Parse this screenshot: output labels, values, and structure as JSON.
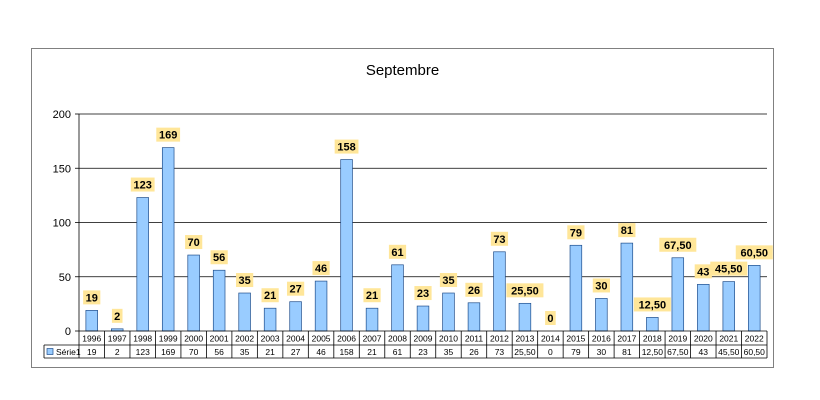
{
  "chart_data": {
    "type": "bar",
    "title": "Septembre",
    "categories": [
      "1996",
      "1997",
      "1998",
      "1999",
      "2000",
      "2001",
      "2002",
      "2003",
      "2004",
      "2005",
      "2006",
      "2007",
      "2008",
      "2009",
      "2010",
      "2011",
      "2012",
      "2013",
      "2014",
      "2015",
      "2016",
      "2017",
      "2018",
      "2019",
      "2020",
      "2021",
      "2022"
    ],
    "series": [
      {
        "name": "Série1",
        "values": [
          19,
          2,
          123,
          169,
          70,
          56,
          35,
          21,
          27,
          46,
          158,
          21,
          61,
          23,
          35,
          26,
          73,
          25.5,
          0,
          79,
          30,
          81,
          12.5,
          67.5,
          43,
          45.5,
          60.5
        ],
        "labels": [
          "19",
          "2",
          "123",
          "169",
          "70",
          "56",
          "35",
          "21",
          "27",
          "46",
          "158",
          "21",
          "61",
          "23",
          "35",
          "26",
          "73",
          "25,50",
          "0",
          "79",
          "30",
          "81",
          "12,50",
          "67,50",
          "43",
          "45,50",
          "60,50"
        ]
      }
    ],
    "ylim": [
      0,
      200
    ],
    "yticks": [
      "0",
      "50",
      "100",
      "150",
      "200"
    ],
    "grid": true,
    "data_table": true,
    "colors": {
      "bar": "#99ccff",
      "bar_border": "#1f4e8c",
      "label_bg": "#ffe699",
      "grid": "#000000"
    }
  }
}
